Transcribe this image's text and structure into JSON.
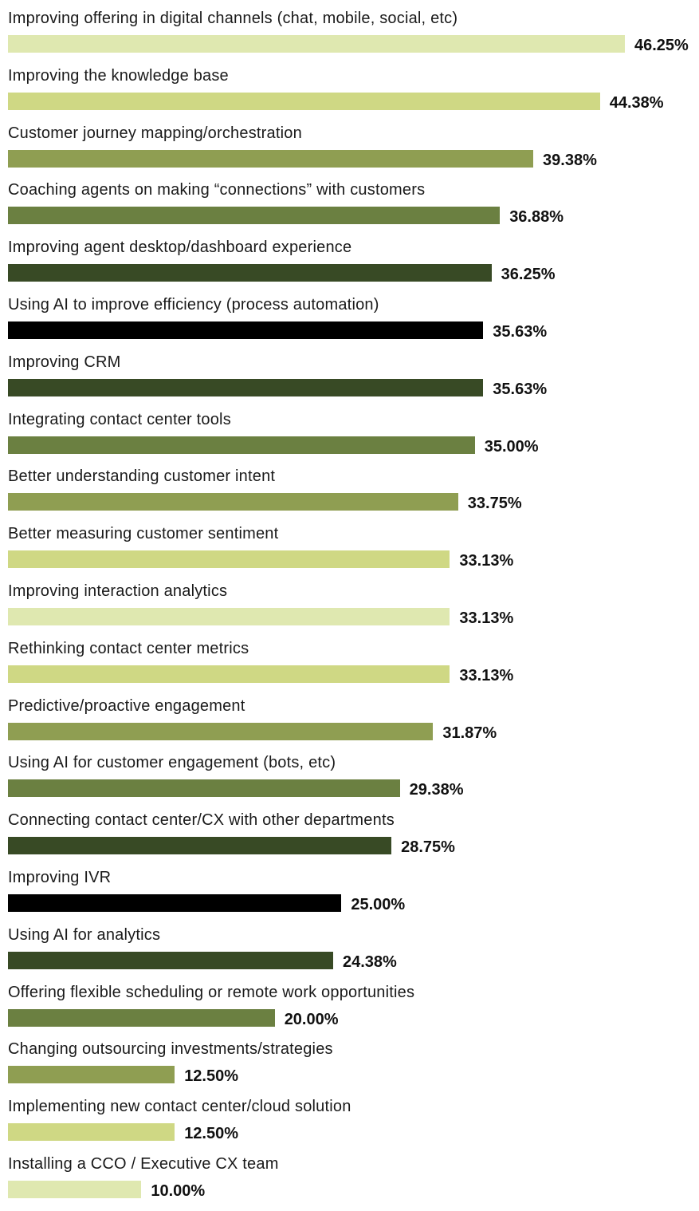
{
  "chart_data": {
    "type": "bar",
    "orientation": "horizontal",
    "xlim": [
      0,
      46.25
    ],
    "categories": [
      "Improving offering in digital channels (chat, mobile, social, etc)",
      "Improving the knowledge base",
      "Customer journey mapping/orchestration",
      "Coaching agents on making “connections” with customers",
      "Improving agent desktop/dashboard experience",
      "Using AI to improve efficiency (process automation)",
      "Improving CRM",
      "Integrating contact center tools",
      "Better understanding customer intent",
      "Better measuring customer sentiment",
      "Improving interaction analytics",
      "Rethinking contact center metrics",
      "Predictive/proactive engagement",
      "Using AI for customer engagement (bots, etc)",
      "Connecting contact center/CX with other departments",
      "Improving IVR",
      "Using AI for analytics",
      "Offering flexible scheduling or remote work opportunities",
      "Changing outsourcing investments/strategies",
      "Implementing new contact center/cloud solution",
      "Installing a CCO / Executive CX team"
    ],
    "values": [
      46.25,
      44.38,
      39.38,
      36.88,
      36.25,
      35.63,
      35.63,
      35.0,
      33.75,
      33.13,
      33.13,
      33.13,
      31.87,
      29.38,
      28.75,
      25.0,
      24.38,
      20.0,
      12.5,
      12.5,
      10.0
    ],
    "value_labels": [
      "46.25%",
      "44.38%",
      "39.38%",
      "36.88%",
      "36.25%",
      "35.63%",
      "35.63%",
      "35.00%",
      "33.75%",
      "33.13%",
      "33.13%",
      "33.13%",
      "31.87%",
      "29.38%",
      "28.75%",
      "25.00%",
      "24.38%",
      "20.00%",
      "12.50%",
      "12.50%",
      "10.00%"
    ],
    "colors": [
      "#dfe8b0",
      "#cfd884",
      "#8f9e52",
      "#6b8041",
      "#384a25",
      "#000000",
      "#384a25",
      "#6b8041",
      "#8f9e52",
      "#cfd884",
      "#dfe8b0",
      "#cfd884",
      "#8f9e52",
      "#6b8041",
      "#384a25",
      "#000000",
      "#384a25",
      "#6b8041",
      "#8f9e52",
      "#cfd884",
      "#dfe8b0"
    ]
  }
}
